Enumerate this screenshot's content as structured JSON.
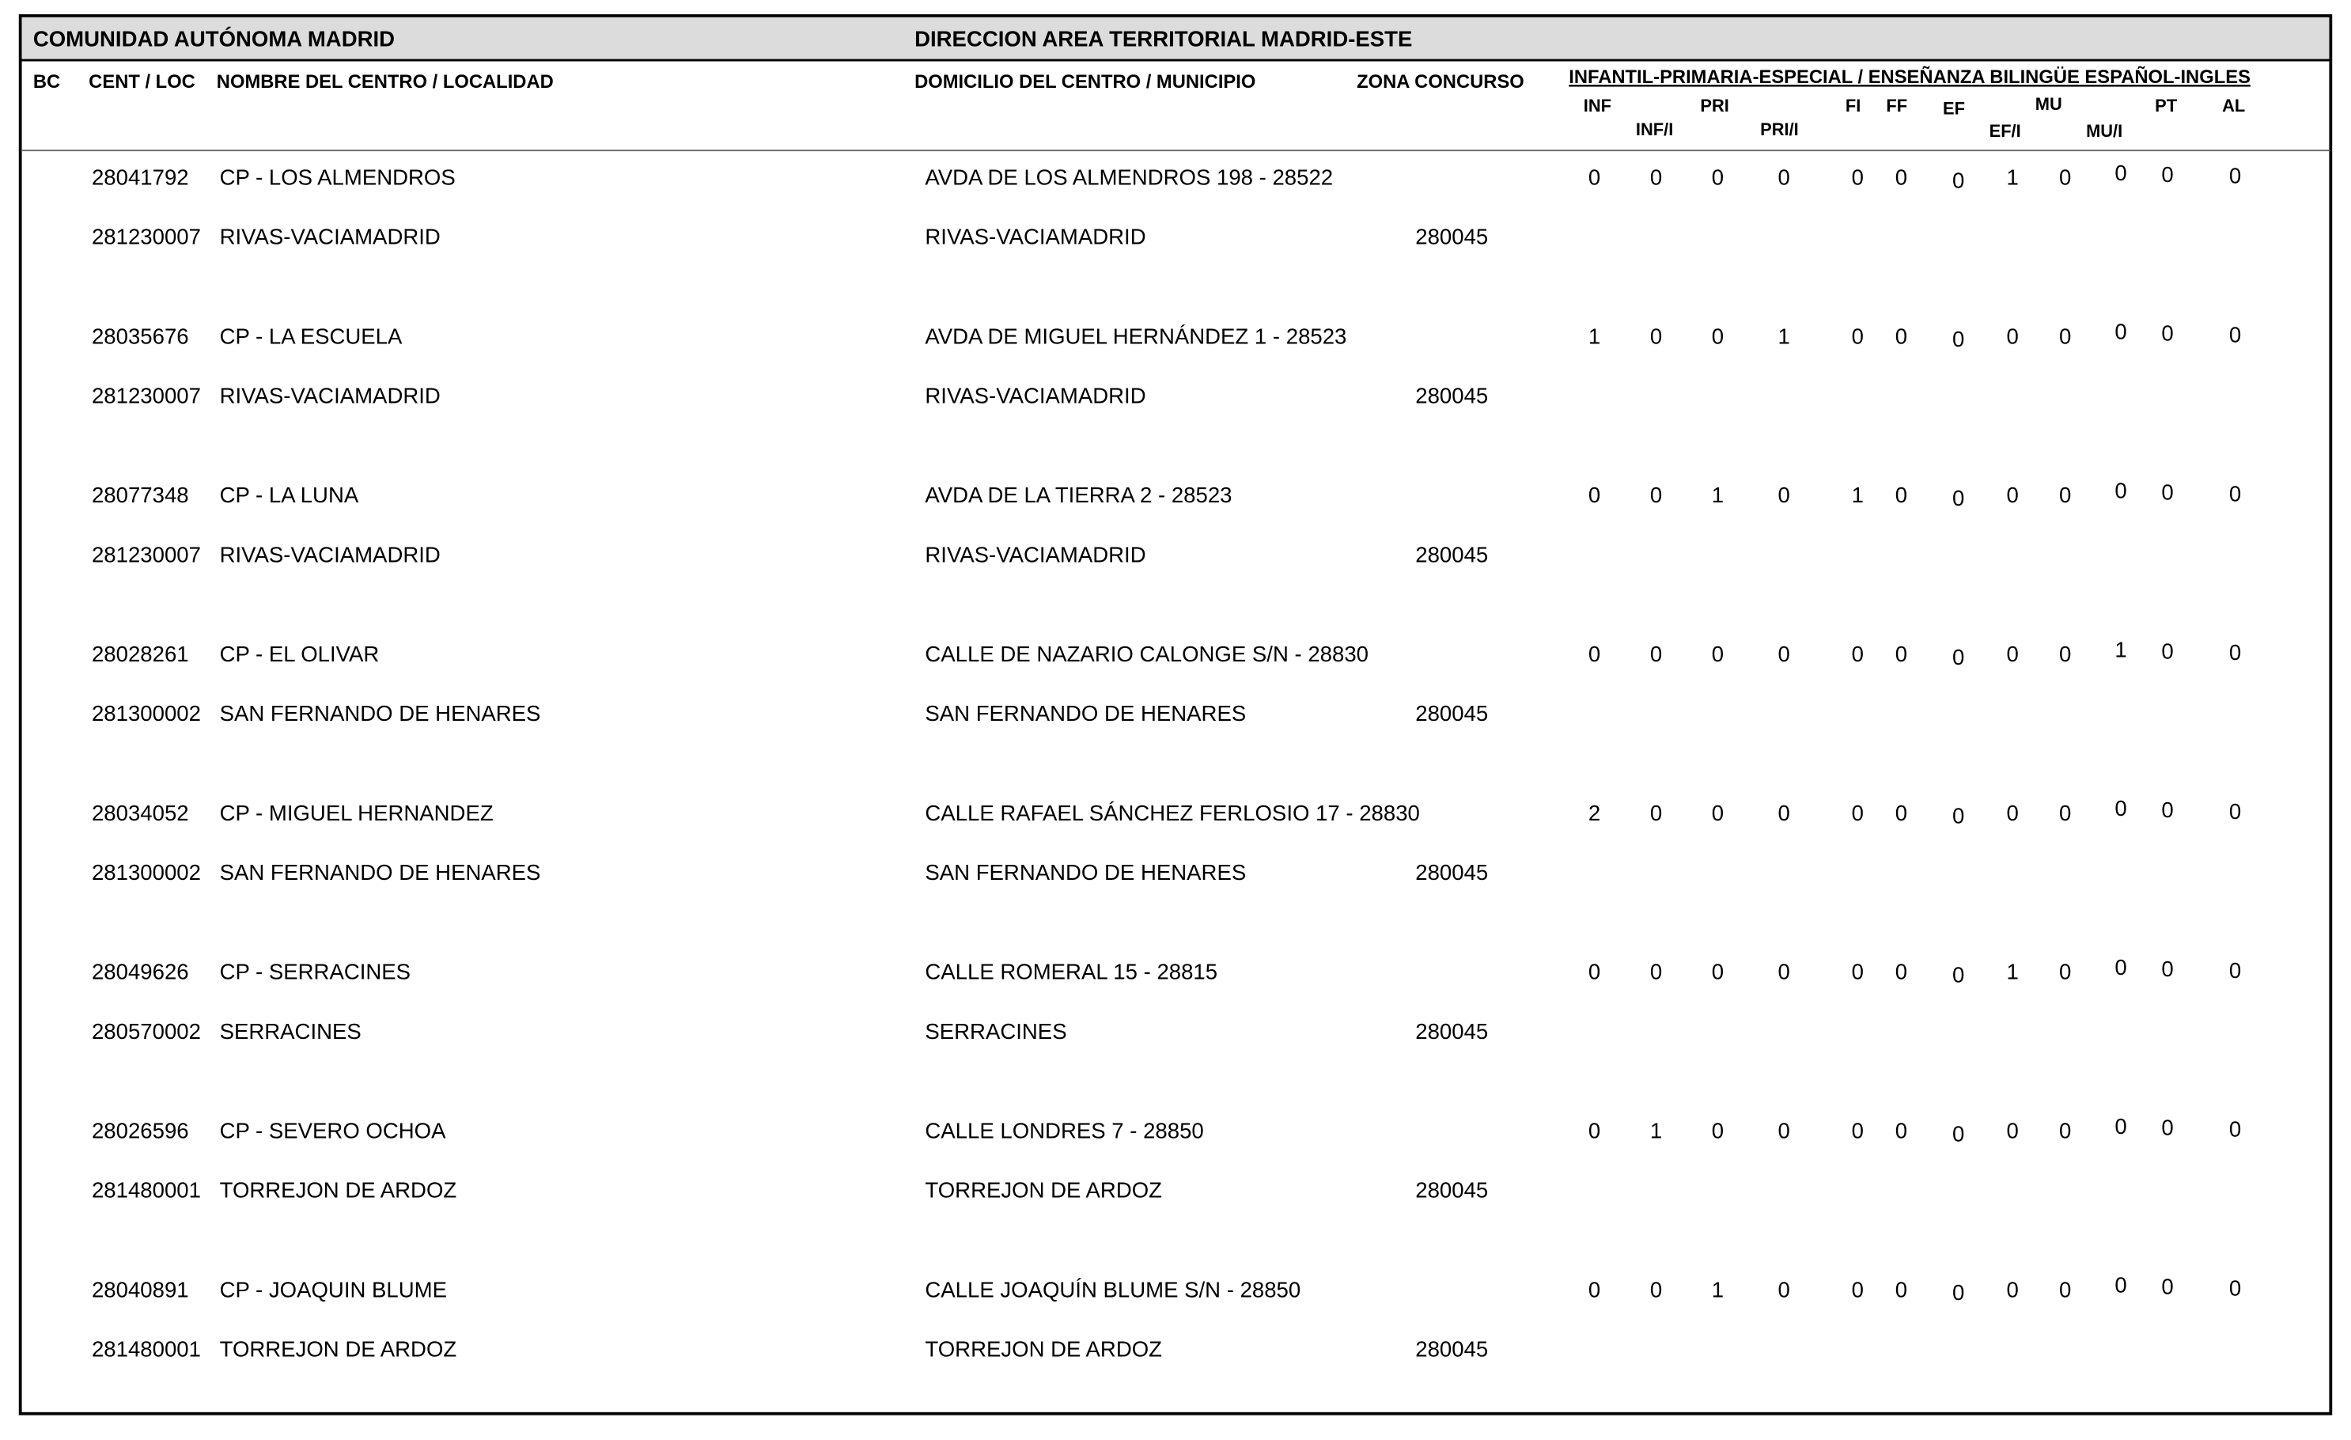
{
  "header": {
    "region": "COMUNIDAD AUTÓNOMA MADRID",
    "area": "DIRECCION AREA TERRITORIAL MADRID-ESTE"
  },
  "columns": {
    "bc": "BC",
    "cent_loc": "CENT / LOC",
    "nombre": "NOMBRE DEL CENTRO / LOCALIDAD",
    "domicilio": "DOMICILIO DEL CENTRO / MUNICIPIO",
    "zona": "ZONA CONCURSO",
    "group": "INFANTIL-PRIMARIA-ESPECIAL / ENSEÑANZA BILINGÜE ESPAÑOL-INGLES",
    "sub": [
      "INF",
      "INF/I",
      "PRI",
      "PRI/I",
      "FI",
      "FF",
      "EF",
      "EF/I",
      "MU",
      "MU/I",
      "PT",
      "AL"
    ]
  },
  "rows": [
    {
      "code": "28041792",
      "name": "CP - LOS ALMENDROS",
      "address": "AVDA DE LOS ALMENDROS 198 - 28522",
      "loc_code": "281230007",
      "locality": "RIVAS-VACIAMADRID",
      "municipality": "RIVAS-VACIAMADRID",
      "zona": "280045",
      "values": [
        0,
        0,
        0,
        0,
        0,
        0,
        0,
        1,
        0,
        0,
        0,
        0
      ]
    },
    {
      "code": "28035676",
      "name": "CP - LA ESCUELA",
      "address": "AVDA DE MIGUEL HERNÁNDEZ 1 - 28523",
      "loc_code": "281230007",
      "locality": "RIVAS-VACIAMADRID",
      "municipality": "RIVAS-VACIAMADRID",
      "zona": "280045",
      "values": [
        1,
        0,
        0,
        1,
        0,
        0,
        0,
        0,
        0,
        0,
        0,
        0
      ]
    },
    {
      "code": "28077348",
      "name": "CP - LA LUNA",
      "address": "AVDA DE LA TIERRA 2 - 28523",
      "loc_code": "281230007",
      "locality": "RIVAS-VACIAMADRID",
      "municipality": "RIVAS-VACIAMADRID",
      "zona": "280045",
      "values": [
        0,
        0,
        1,
        0,
        1,
        0,
        0,
        0,
        0,
        0,
        0,
        0
      ]
    },
    {
      "code": "28028261",
      "name": "CP - EL OLIVAR",
      "address": "CALLE DE NAZARIO CALONGE S/N - 28830",
      "loc_code": "281300002",
      "locality": "SAN FERNANDO DE HENARES",
      "municipality": "SAN FERNANDO DE HENARES",
      "zona": "280045",
      "values": [
        0,
        0,
        0,
        0,
        0,
        0,
        0,
        0,
        0,
        1,
        0,
        0
      ]
    },
    {
      "code": "28034052",
      "name": "CP - MIGUEL HERNANDEZ",
      "address": "CALLE RAFAEL SÁNCHEZ FERLOSIO 17 - 28830",
      "loc_code": "281300002",
      "locality": "SAN FERNANDO DE HENARES",
      "municipality": "SAN FERNANDO DE HENARES",
      "zona": "280045",
      "values": [
        2,
        0,
        0,
        0,
        0,
        0,
        0,
        0,
        0,
        0,
        0,
        0
      ]
    },
    {
      "code": "28049626",
      "name": "CP - SERRACINES",
      "address": "CALLE ROMERAL 15 - 28815",
      "loc_code": "280570002",
      "locality": "SERRACINES",
      "municipality": "SERRACINES",
      "zona": "280045",
      "values": [
        0,
        0,
        0,
        0,
        0,
        0,
        0,
        1,
        0,
        0,
        0,
        0
      ]
    },
    {
      "code": "28026596",
      "name": "CP - SEVERO OCHOA",
      "address": "CALLE LONDRES 7 - 28850",
      "loc_code": "281480001",
      "locality": "TORREJON DE ARDOZ",
      "municipality": "TORREJON DE ARDOZ",
      "zona": "280045",
      "values": [
        0,
        1,
        0,
        0,
        0,
        0,
        0,
        0,
        0,
        0,
        0,
        0
      ]
    },
    {
      "code": "28040891",
      "name": "CP - JOAQUIN BLUME",
      "address": "CALLE JOAQUÍN BLUME S/N - 28850",
      "loc_code": "281480001",
      "locality": "TORREJON DE ARDOZ",
      "municipality": "TORREJON DE ARDOZ",
      "zona": "280045",
      "values": [
        0,
        0,
        1,
        0,
        0,
        0,
        0,
        0,
        0,
        0,
        0,
        0
      ]
    }
  ]
}
